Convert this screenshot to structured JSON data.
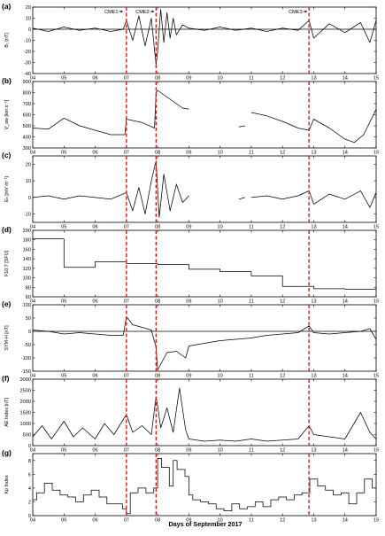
{
  "figure": {
    "xlabel": "Days of September 2017",
    "event_lines_color": "#e31a1c"
  },
  "chart_data": [
    {
      "type": "line",
      "panel_label": "(a)",
      "ylabel": "B₂ [nT]",
      "xlim": [
        4,
        15
      ],
      "ylim": [
        -40,
        20
      ],
      "xticks": [
        "04",
        "05",
        "06",
        "07",
        "08",
        "09",
        "10",
        "11",
        "12",
        "13",
        "14",
        "15"
      ],
      "yticks": [
        "-40",
        "-30",
        "-20",
        "-10",
        "0",
        "10",
        "20"
      ],
      "zero_line": true,
      "event_lines": [
        7.0,
        7.95,
        12.85
      ],
      "annotations": [
        {
          "text": "CME1",
          "x": 6.85
        },
        {
          "text": "CME2",
          "x": 7.85
        },
        {
          "text": "CME3",
          "x": 12.75
        }
      ],
      "series": [
        {
          "x": [
            4.0,
            4.5,
            5.0,
            5.5,
            6.0,
            6.5,
            6.9,
            7.0,
            7.2,
            7.4,
            7.6,
            7.8,
            7.95,
            8.0,
            8.1,
            8.2,
            8.3,
            8.4,
            8.5,
            8.6,
            8.8,
            9.0,
            9.5,
            10.0,
            10.5,
            11.0,
            11.5,
            12.0,
            12.5,
            12.85,
            13.0,
            13.5,
            14.0,
            14.5,
            14.8,
            15.0
          ],
          "y": [
            1,
            -2,
            2,
            -1,
            1,
            -2,
            0,
            8,
            -10,
            12,
            -15,
            10,
            -32,
            -20,
            18,
            -12,
            15,
            -8,
            10,
            -5,
            4,
            1,
            -1,
            2,
            -1,
            1,
            -2,
            1,
            -1,
            8,
            -8,
            5,
            -3,
            6,
            -12,
            8
          ]
        }
      ]
    },
    {
      "type": "line",
      "panel_label": "(b)",
      "ylabel": "V_sw [km s⁻¹]",
      "xlim": [
        4,
        15
      ],
      "ylim": [
        300,
        900
      ],
      "xticks": [
        "04",
        "05",
        "06",
        "07",
        "08",
        "09",
        "10",
        "11",
        "12",
        "13",
        "14",
        "15"
      ],
      "yticks": [
        "300",
        "400",
        "500",
        "600",
        "700",
        "800",
        "900"
      ],
      "event_lines": [
        7.0,
        7.95,
        12.85
      ],
      "series": [
        {
          "x": [
            4.0,
            4.5,
            5.0,
            5.5,
            6.0,
            6.5,
            6.95,
            7.0,
            7.5,
            7.9,
            7.95,
            8.0,
            8.3,
            8.6,
            8.8,
            9.0,
            null,
            10.6,
            10.8,
            null,
            11.0,
            11.5,
            12.0,
            12.5,
            12.85,
            13.0,
            13.5,
            14.0,
            14.3,
            14.6,
            15.0
          ],
          "y": [
            480,
            470,
            570,
            500,
            460,
            420,
            420,
            560,
            530,
            480,
            800,
            820,
            760,
            700,
            660,
            650,
            null,
            490,
            500,
            null,
            620,
            590,
            540,
            480,
            460,
            560,
            480,
            380,
            350,
            420,
            650
          ]
        }
      ]
    },
    {
      "type": "line",
      "panel_label": "(c)",
      "ylabel": "Eₕ [mV m⁻¹]",
      "xlim": [
        4,
        15
      ],
      "ylim": [
        -15,
        25
      ],
      "xticks": [
        "04",
        "05",
        "06",
        "07",
        "08",
        "09",
        "10",
        "11",
        "12",
        "13",
        "14",
        "15"
      ],
      "yticks": [
        "-10",
        "0",
        "10",
        "20"
      ],
      "event_lines": [
        7.0,
        7.95,
        12.85
      ],
      "series": [
        {
          "x": [
            4.0,
            4.5,
            5.0,
            5.5,
            6.0,
            6.5,
            7.0,
            7.2,
            7.4,
            7.6,
            7.8,
            7.95,
            8.05,
            8.2,
            8.4,
            8.6,
            8.8,
            9.0,
            null,
            10.6,
            10.8,
            null,
            11.0,
            11.5,
            12.0,
            12.5,
            12.85,
            13.0,
            13.5,
            14.0,
            14.5,
            14.8,
            15.0
          ],
          "y": [
            0,
            1,
            -1,
            1,
            0,
            -1,
            3,
            -8,
            6,
            -10,
            10,
            22,
            -12,
            14,
            -8,
            8,
            -3,
            1,
            null,
            -1,
            0,
            null,
            0,
            1,
            -1,
            1,
            4,
            -4,
            2,
            -1,
            4,
            -6,
            3
          ]
        }
      ]
    },
    {
      "type": "line",
      "panel_label": "(d)",
      "ylabel": "F10.7 [SFU]",
      "xlim": [
        4,
        15
      ],
      "ylim": [
        60,
        200
      ],
      "xticks": [
        "04",
        "05",
        "06",
        "07",
        "08",
        "09",
        "10",
        "11",
        "12",
        "13",
        "14",
        "15"
      ],
      "yticks": [
        "60",
        "80",
        "100",
        "120",
        "140",
        "160",
        "180",
        "200"
      ],
      "event_lines": [
        7.0,
        7.95,
        12.85
      ],
      "step": true,
      "series": [
        {
          "x": [
            4,
            5,
            6,
            7,
            8,
            9,
            10,
            11,
            12,
            13,
            14,
            15
          ],
          "y": [
            182,
            122,
            134,
            130,
            128,
            118,
            113,
            104,
            82,
            77,
            76,
            76
          ]
        }
      ]
    },
    {
      "type": "line",
      "panel_label": "(e)",
      "ylabel": "SYM-H [nT]",
      "xlim": [
        4,
        15
      ],
      "ylim": [
        -150,
        100
      ],
      "xticks": [
        "04",
        "05",
        "06",
        "07",
        "08",
        "09",
        "10",
        "11",
        "12",
        "13",
        "14",
        "15"
      ],
      "yticks": [
        "-150",
        "-100",
        "-50",
        "0",
        "50",
        "100"
      ],
      "zero_line": true,
      "event_lines": [
        7.0,
        7.95,
        12.85
      ],
      "series": [
        {
          "x": [
            4.0,
            4.5,
            5.0,
            5.5,
            6.0,
            6.5,
            6.9,
            7.0,
            7.2,
            7.5,
            7.8,
            7.95,
            8.0,
            8.3,
            8.6,
            8.9,
            9.0,
            9.5,
            10.0,
            10.5,
            11.0,
            11.5,
            12.0,
            12.5,
            12.85,
            13.0,
            13.5,
            14.0,
            14.5,
            14.8,
            15.0
          ],
          "y": [
            5,
            0,
            -10,
            -5,
            -10,
            -15,
            -15,
            55,
            25,
            15,
            5,
            -60,
            -145,
            -80,
            -75,
            -100,
            -55,
            -45,
            -35,
            -30,
            -25,
            -15,
            -10,
            -5,
            20,
            -5,
            -10,
            -5,
            0,
            10,
            -30
          ]
        }
      ]
    },
    {
      "type": "line",
      "panel_label": "(f)",
      "ylabel": "AE Index [nT]",
      "xlim": [
        4,
        15
      ],
      "ylim": [
        0,
        3000
      ],
      "xticks": [
        "04",
        "05",
        "06",
        "07",
        "08",
        "09",
        "10",
        "11",
        "12",
        "13",
        "14",
        "15"
      ],
      "yticks": [
        "0",
        "500",
        "1000",
        "1500",
        "2000",
        "2500",
        "3000"
      ],
      "event_lines": [
        7.0,
        7.95,
        12.85
      ],
      "series": [
        {
          "x": [
            4.0,
            4.3,
            4.6,
            5.0,
            5.3,
            5.6,
            6.0,
            6.3,
            6.6,
            7.0,
            7.2,
            7.5,
            7.8,
            7.95,
            8.0,
            8.1,
            8.3,
            8.5,
            8.7,
            8.9,
            9.0,
            9.5,
            10.0,
            10.5,
            11.0,
            11.5,
            12.0,
            12.5,
            12.85,
            13.0,
            13.5,
            14.0,
            14.5,
            14.8,
            15.0
          ],
          "y": [
            400,
            900,
            300,
            1100,
            400,
            800,
            300,
            1000,
            500,
            1400,
            600,
            900,
            500,
            2200,
            1800,
            800,
            1700,
            600,
            2600,
            700,
            300,
            200,
            250,
            200,
            300,
            200,
            250,
            300,
            900,
            500,
            400,
            300,
            1500,
            600,
            300
          ]
        }
      ]
    },
    {
      "type": "line",
      "panel_label": "(g)",
      "ylabel": "Kp Index",
      "xlim": [
        4,
        15
      ],
      "ylim": [
        0,
        9
      ],
      "xticks": [
        "04",
        "05",
        "06",
        "07",
        "08",
        "09",
        "10",
        "11",
        "12",
        "13",
        "14",
        "15"
      ],
      "yticks": [
        "0",
        "2",
        "4",
        "6",
        "8"
      ],
      "event_lines": [
        7.0,
        7.95,
        12.85
      ],
      "step": true,
      "series": [
        {
          "x": [
            4.0,
            4.125,
            4.375,
            4.625,
            4.875,
            5.125,
            5.375,
            5.625,
            5.875,
            6.125,
            6.375,
            6.625,
            6.875,
            7.0,
            7.125,
            7.375,
            7.625,
            7.875,
            8.0,
            8.125,
            8.375,
            8.5,
            8.625,
            8.875,
            9.0,
            9.125,
            9.375,
            9.625,
            9.875,
            10.125,
            10.375,
            10.625,
            10.875,
            11.125,
            11.375,
            11.625,
            11.875,
            12.125,
            12.375,
            12.625,
            12.875,
            13.125,
            13.375,
            13.625,
            13.875,
            14.125,
            14.375,
            14.625,
            14.875
          ],
          "y": [
            2.3,
            3.3,
            4.7,
            3.7,
            3.0,
            2.7,
            2.0,
            3.0,
            3.7,
            2.7,
            1.7,
            1.7,
            1.0,
            0.3,
            3.3,
            4.0,
            3.3,
            4.0,
            8.3,
            7.0,
            4.3,
            8.0,
            6.7,
            5.7,
            3.0,
            2.3,
            2.0,
            1.7,
            1.0,
            0.7,
            1.7,
            1.0,
            1.3,
            2.0,
            1.3,
            2.3,
            2.7,
            2.3,
            3.0,
            3.3,
            5.3,
            4.3,
            3.7,
            3.0,
            3.3,
            1.7,
            3.3,
            5.3,
            4.0
          ]
        }
      ]
    }
  ]
}
